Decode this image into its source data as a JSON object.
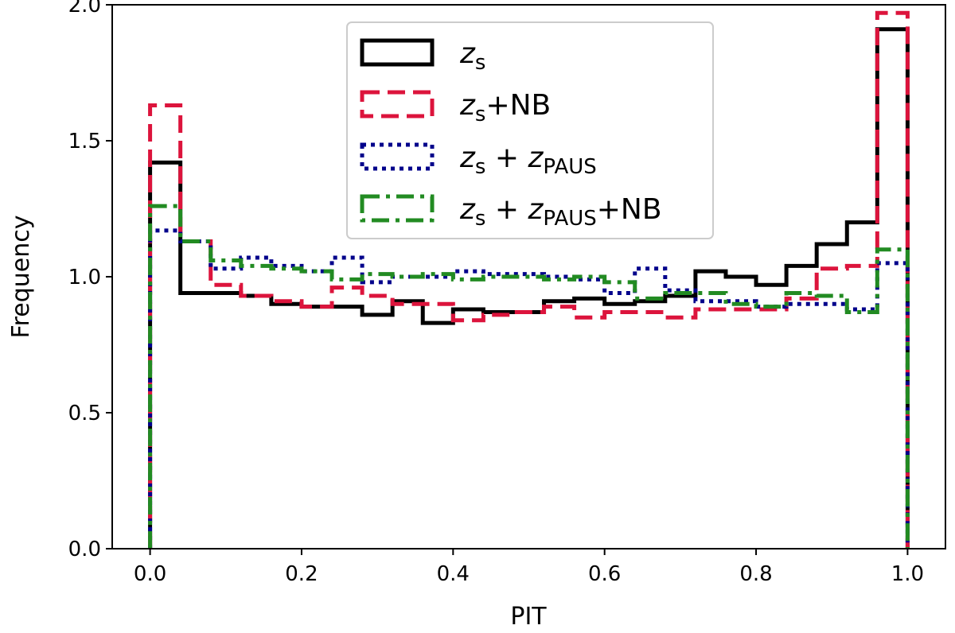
{
  "chart_data": {
    "type": "histogram",
    "xlabel": "PIT",
    "ylabel": "Frequency",
    "xlim": [
      -0.05,
      1.05
    ],
    "ylim": [
      0.0,
      2.0
    ],
    "xticks": [
      0.0,
      0.2,
      0.4,
      0.6,
      0.8,
      1.0
    ],
    "xtick_labels": [
      "0.0",
      "0.2",
      "0.4",
      "0.6",
      "0.8",
      "1.0"
    ],
    "yticks": [
      0.0,
      0.5,
      1.0,
      1.5,
      2.0
    ],
    "ytick_labels": [
      "0.0",
      "0.5",
      "1.0",
      "1.5",
      "2.0"
    ],
    "grid": false,
    "legend_position": "upper-center",
    "bin_edges": [
      0.0,
      0.04,
      0.08,
      0.12,
      0.16,
      0.2,
      0.24,
      0.28,
      0.32,
      0.36,
      0.4,
      0.44,
      0.48,
      0.52,
      0.56,
      0.6,
      0.64,
      0.68,
      0.72,
      0.76,
      0.8,
      0.84,
      0.88,
      0.92,
      0.96,
      1.0
    ],
    "series": [
      {
        "name": "z_s",
        "legend_parts": [
          {
            "t": "z",
            "style": "italic"
          },
          {
            "t": "s",
            "style": "sub"
          }
        ],
        "color": "#000000",
        "linestyle": "solid",
        "values": [
          1.42,
          0.94,
          0.94,
          0.93,
          0.9,
          0.89,
          0.89,
          0.86,
          0.91,
          0.83,
          0.88,
          0.87,
          0.87,
          0.91,
          0.92,
          0.9,
          0.91,
          0.93,
          1.02,
          1.0,
          0.97,
          1.04,
          1.12,
          1.2,
          1.91
        ]
      },
      {
        "name": "z_s+NB",
        "legend_parts": [
          {
            "t": "z",
            "style": "italic"
          },
          {
            "t": "s",
            "style": "sub"
          },
          {
            "t": "+NB",
            "style": "normal"
          }
        ],
        "color": "#dc143c",
        "linestyle": "dashed",
        "values": [
          1.63,
          1.13,
          0.97,
          0.93,
          0.91,
          0.89,
          0.96,
          0.93,
          0.9,
          0.9,
          0.84,
          0.86,
          0.87,
          0.89,
          0.85,
          0.87,
          0.87,
          0.85,
          0.88,
          0.88,
          0.88,
          0.92,
          1.03,
          1.04,
          1.97
        ]
      },
      {
        "name": "z_s + z_PAUS",
        "legend_parts": [
          {
            "t": "z",
            "style": "italic"
          },
          {
            "t": "s",
            "style": "sub"
          },
          {
            "t": " + ",
            "style": "normal"
          },
          {
            "t": "z",
            "style": "italic"
          },
          {
            "t": "PAUS",
            "style": "sub"
          }
        ],
        "color": "#00008b",
        "linestyle": "dotted",
        "values": [
          1.17,
          1.13,
          1.03,
          1.07,
          1.04,
          1.02,
          1.07,
          0.98,
          1.0,
          1.0,
          1.02,
          1.01,
          1.01,
          1.0,
          0.99,
          0.94,
          1.03,
          0.95,
          0.91,
          0.91,
          0.89,
          0.9,
          0.9,
          0.88,
          1.05
        ]
      },
      {
        "name": "z_s + z_PAUS+NB",
        "legend_parts": [
          {
            "t": "z",
            "style": "italic"
          },
          {
            "t": "s",
            "style": "sub"
          },
          {
            "t": " + ",
            "style": "normal"
          },
          {
            "t": "z",
            "style": "italic"
          },
          {
            "t": "PAUS",
            "style": "sub"
          },
          {
            "t": "+NB",
            "style": "normal"
          }
        ],
        "color": "#228b22",
        "linestyle": "dashdot",
        "values": [
          1.26,
          1.13,
          1.06,
          1.04,
          1.03,
          1.02,
          0.99,
          1.01,
          1.0,
          1.01,
          0.99,
          1.0,
          1.0,
          0.99,
          1.0,
          0.98,
          0.92,
          0.94,
          0.94,
          0.9,
          0.89,
          0.94,
          0.93,
          0.87,
          1.1
        ]
      }
    ]
  }
}
